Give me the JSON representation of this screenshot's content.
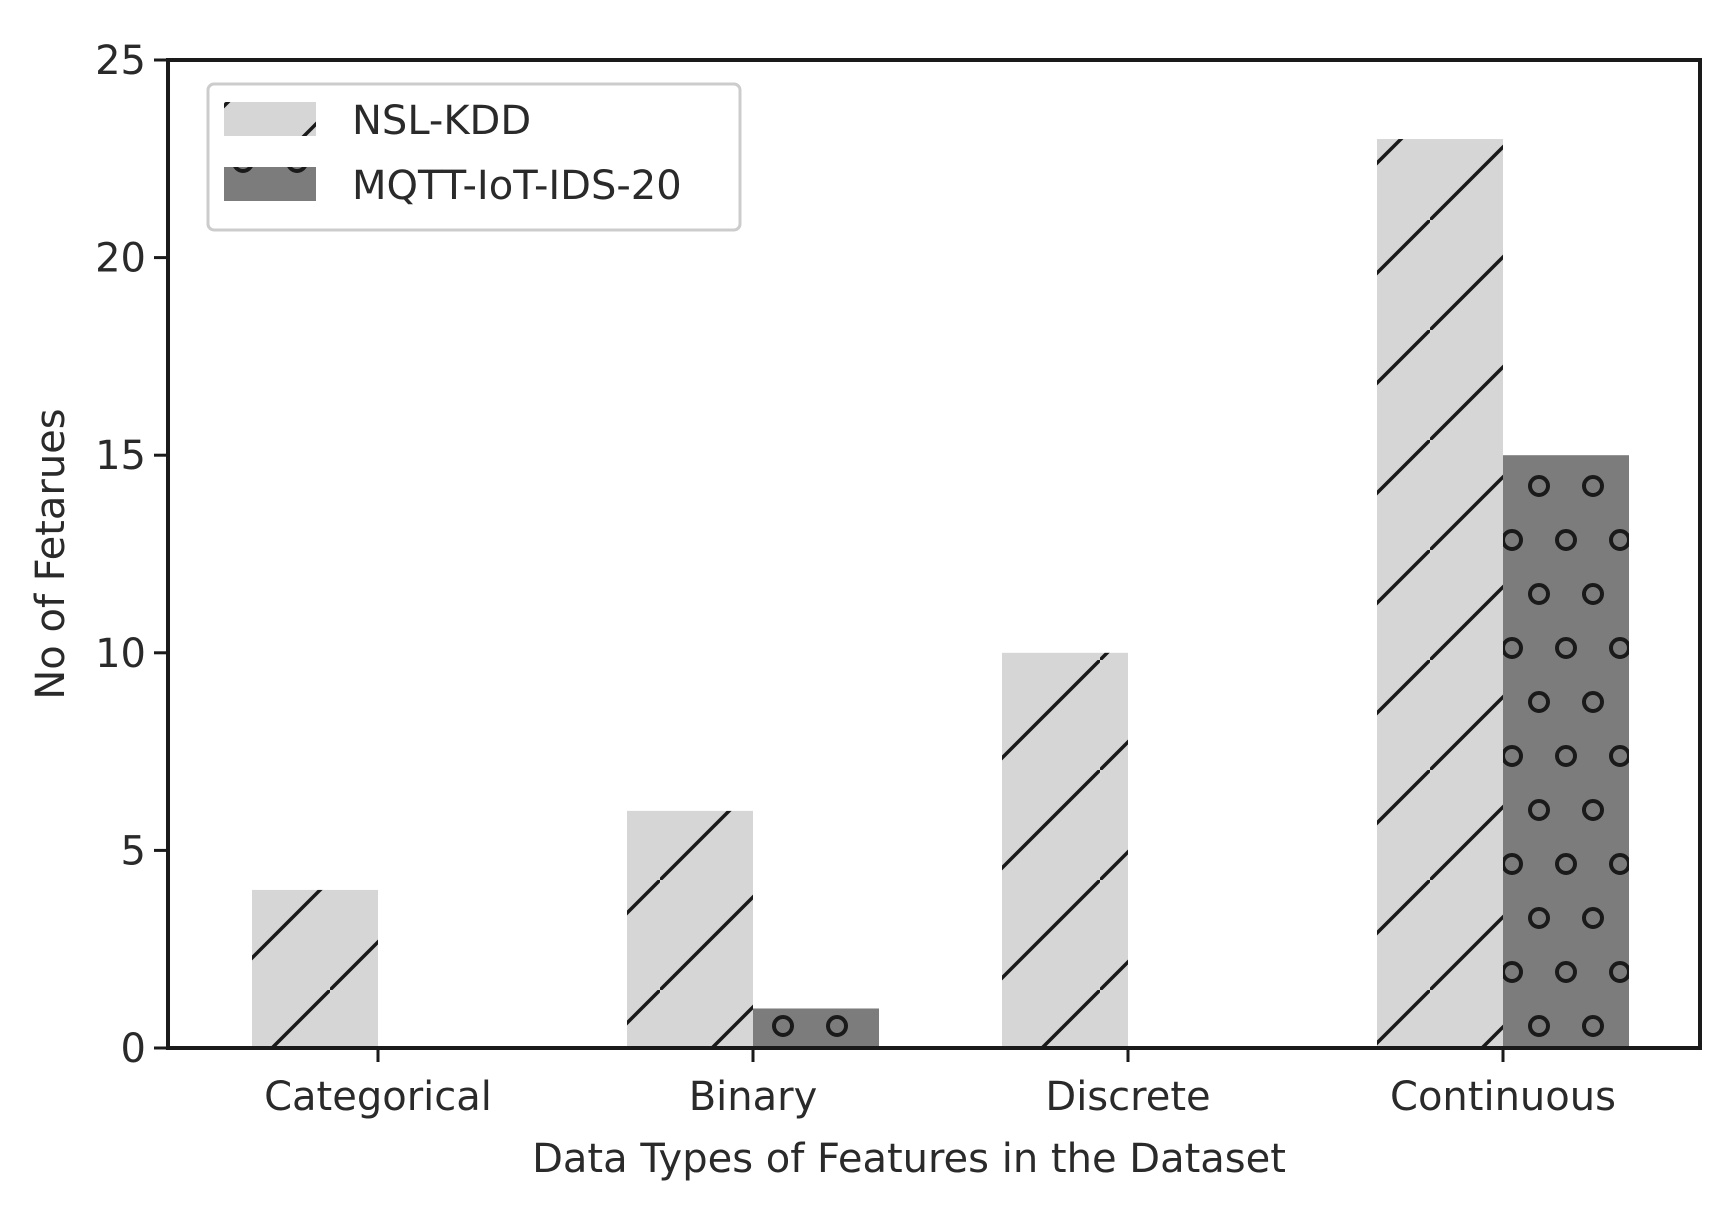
{
  "chart_data": {
    "type": "bar",
    "title": "",
    "xlabel": "Data Types of Features in the Dataset",
    "ylabel": "No of Fetarues",
    "categories": [
      "Categorical",
      "Binary",
      "Discrete",
      "Continuous"
    ],
    "series": [
      {
        "name": "NSL-KDD",
        "values": [
          4,
          6,
          10,
          23
        ],
        "color": "#d6d6d6",
        "hatch": "diagonal-lines"
      },
      {
        "name": "MQTT-IoT-IDS-20",
        "values": [
          0,
          1,
          0,
          15
        ],
        "color": "#7c7c7c",
        "hatch": "circles"
      }
    ],
    "ylim": [
      0,
      25
    ],
    "yticks": [
      0,
      5,
      10,
      15,
      20,
      25
    ],
    "grid": false,
    "legend": "top-left"
  }
}
